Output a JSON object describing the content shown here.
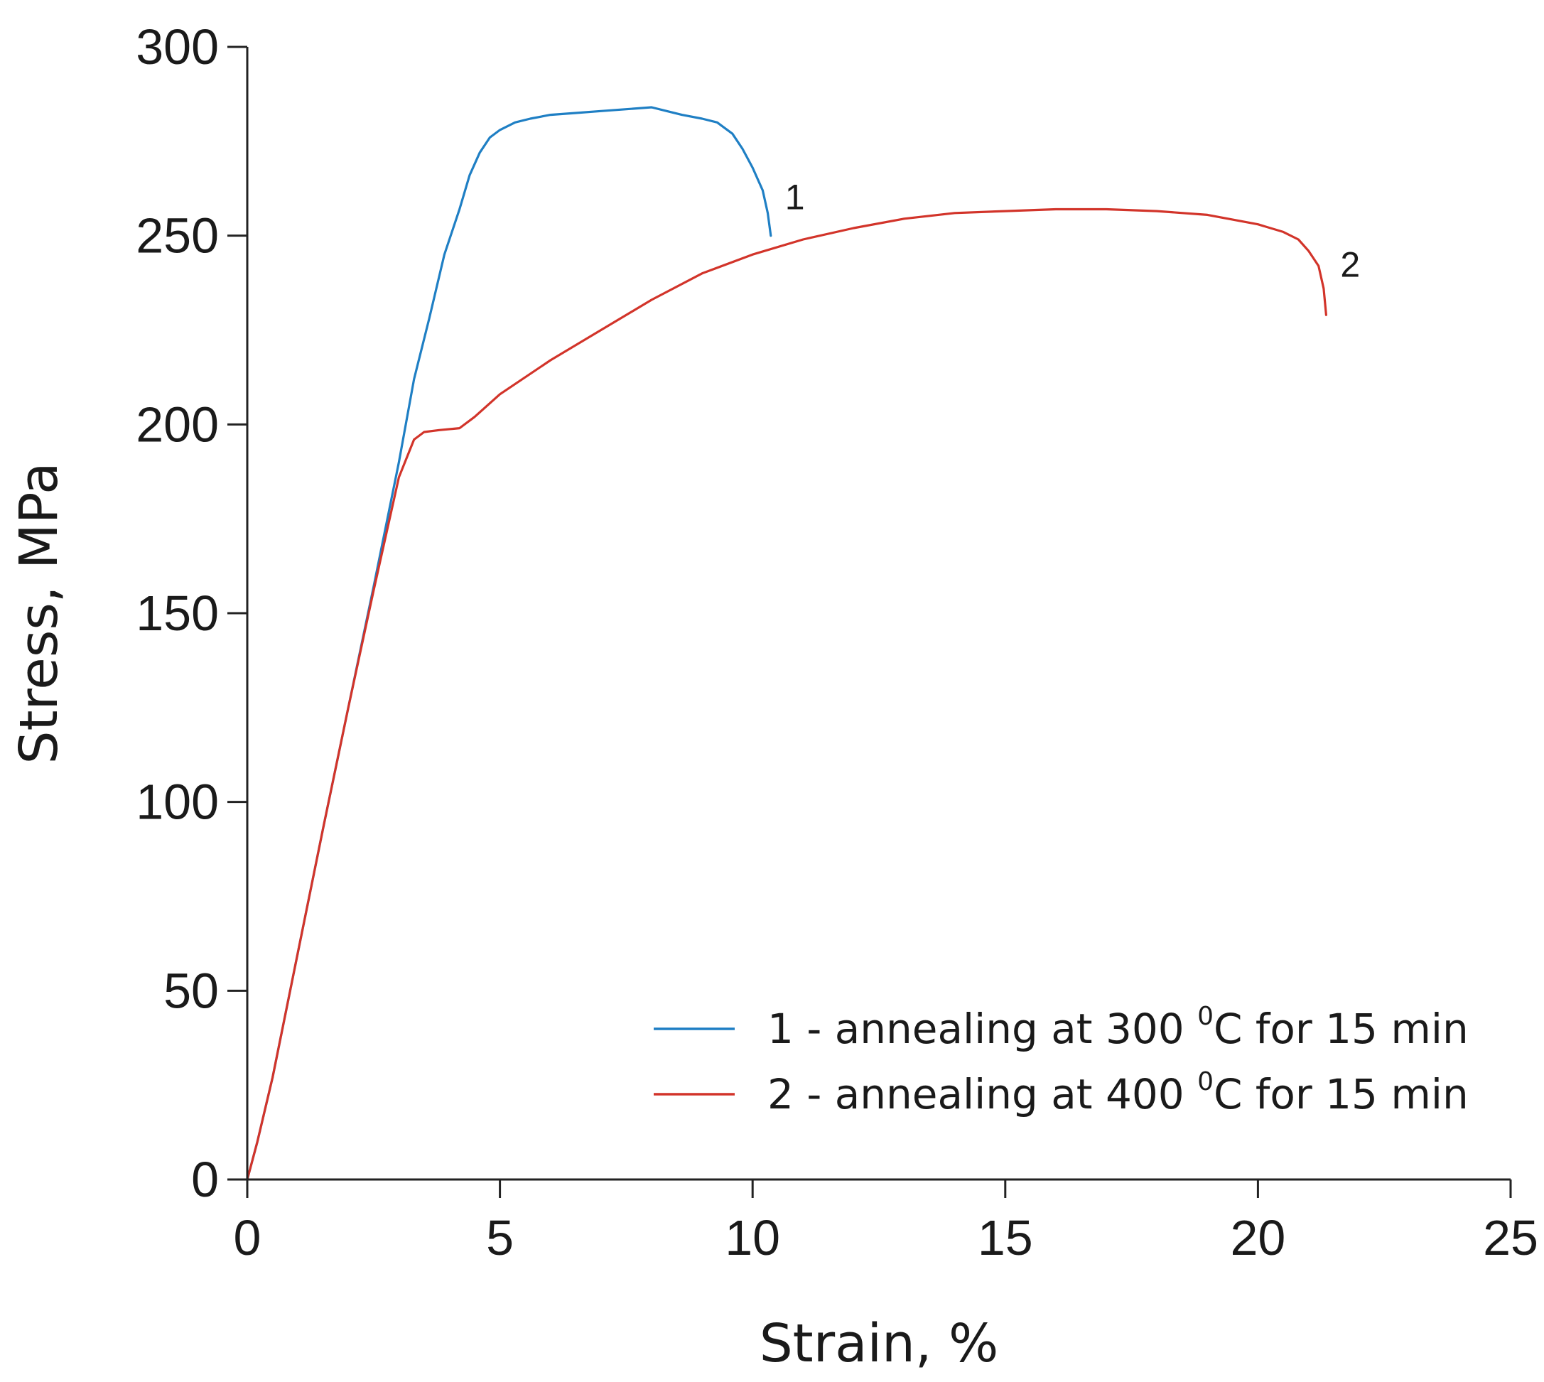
{
  "chart_data": {
    "type": "line",
    "title": "",
    "xlabel": "Strain, %",
    "ylabel": "Stress, MPa",
    "xlim": [
      0,
      25
    ],
    "ylim": [
      0,
      300
    ],
    "xticks": [
      0,
      5,
      10,
      15,
      20,
      25
    ],
    "yticks": [
      0,
      50,
      100,
      150,
      200,
      250,
      300
    ],
    "xtick_labels": [
      "0",
      "5",
      "10",
      "15",
      "20",
      "25"
    ],
    "ytick_labels": [
      "0",
      "50",
      "100",
      "150",
      "200",
      "250",
      "300"
    ],
    "grid": false,
    "legend_position": "bottom-right",
    "series": [
      {
        "name": "1 - annealing at 300 °C for 15 min",
        "legend_prefix": "1 - annealing at 300 ",
        "legend_sup": "0",
        "legend_suffix": "C for 15 min",
        "curve_label": "1",
        "color": "#1f7fc4",
        "x": [
          0,
          0.2,
          0.5,
          1.0,
          1.5,
          2.0,
          2.5,
          3.0,
          3.3,
          3.6,
          3.9,
          4.2,
          4.4,
          4.6,
          4.8,
          5.0,
          5.3,
          5.6,
          6.0,
          6.5,
          7.0,
          7.5,
          8.0,
          8.3,
          8.6,
          9.0,
          9.3,
          9.6,
          9.8,
          10.0,
          10.2,
          10.3,
          10.35,
          10.36
        ],
        "y": [
          0,
          10,
          27,
          60,
          93,
          125,
          157,
          190,
          212,
          228,
          245,
          257,
          266,
          272,
          276,
          278,
          280,
          281,
          282,
          282.5,
          283,
          283.5,
          284,
          283,
          282,
          281,
          280,
          277,
          273,
          268,
          262,
          256,
          251,
          250
        ]
      },
      {
        "name": "2 - annealing at 400 °C for 15 min",
        "legend_prefix": "2 - annealing at 400 ",
        "legend_sup": "0",
        "legend_suffix": "C for 15 min",
        "curve_label": "2",
        "color": "#d2342a",
        "x": [
          0,
          0.2,
          0.5,
          1.0,
          1.5,
          2.0,
          2.5,
          3.0,
          3.3,
          3.5,
          3.8,
          4.2,
          4.5,
          5.0,
          6.0,
          7.0,
          8.0,
          9.0,
          10.0,
          11.0,
          12.0,
          13.0,
          14.0,
          15.0,
          16.0,
          17.0,
          18.0,
          19.0,
          20.0,
          20.5,
          20.8,
          21.0,
          21.2,
          21.3,
          21.35
        ],
        "y": [
          0,
          10,
          27,
          60,
          93,
          125,
          156,
          186,
          196,
          198,
          198.5,
          199,
          202,
          208,
          217,
          225,
          233,
          240,
          245,
          249,
          252,
          254.5,
          256,
          256.5,
          257,
          257,
          256.5,
          255.5,
          253,
          251,
          249,
          246,
          242,
          236,
          229
        ]
      }
    ]
  }
}
